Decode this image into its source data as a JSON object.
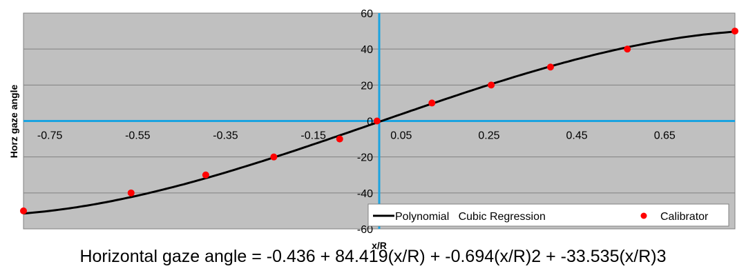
{
  "chart_data": {
    "type": "scatter",
    "xlabel": "x/R",
    "ylabel": "Horz gaze angle",
    "xlim": [
      -0.81,
      0.81
    ],
    "ylim": [
      -60,
      60
    ],
    "x_ticks": [
      -0.75,
      -0.55,
      -0.35,
      -0.15,
      0.05,
      0.25,
      0.45,
      0.65
    ],
    "x_tick_labels": [
      "-0.75",
      "-0.55",
      "-0.35",
      "-0.15",
      "0.05",
      "0.25",
      "0.45",
      "0.65"
    ],
    "y_ticks": [
      -60,
      -40,
      -20,
      0,
      20,
      40,
      60
    ],
    "y_tick_labels": [
      "-60",
      "-40",
      "-20",
      "0",
      "20",
      "40",
      "60"
    ],
    "grid": "horizontal",
    "legend_position": "bottom-right",
    "series": [
      {
        "name": "Polynomial   Cubic Regression",
        "type": "line",
        "coefficients": [
          -0.436,
          84.419,
          -0.694,
          -33.535
        ],
        "x_range": [
          -0.81,
          0.81
        ],
        "color": "#000000"
      },
      {
        "name": "Calibrator",
        "type": "scatter",
        "color": "#ff0000",
        "x": [
          -0.81,
          -0.565,
          -0.395,
          -0.24,
          -0.09,
          -0.005,
          0.12,
          0.255,
          0.39,
          0.565,
          0.81
        ],
        "y": [
          -50,
          -40,
          -30,
          -20,
          -10,
          0,
          10,
          20,
          30,
          40,
          50
        ]
      }
    ],
    "equation": "Horizontal gaze angle = -0.436 + 84.419(x/R) + -0.694(x/R)2 + -33.535(x/R)3",
    "colors": {
      "plot_bg": "#c0c0c0",
      "axis": "#1aa3e0",
      "grid": "#808080"
    }
  }
}
